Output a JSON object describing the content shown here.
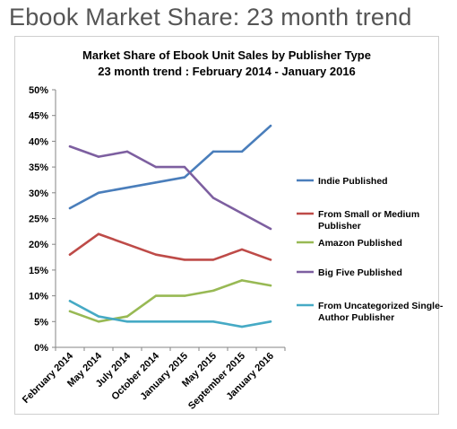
{
  "page": {
    "heading": "Ebook Market Share: 23 month trend"
  },
  "chart_data": {
    "type": "line",
    "title": "Market Share of Ebook Unit Sales by Publisher Type",
    "subtitle": "23 month trend : February 2014 - January 2016",
    "xlabel": "",
    "ylabel": "",
    "categories": [
      "February 2014",
      "May 2014",
      "July 2014",
      "October 2014",
      "January 2015",
      "May 2015",
      "September 2015",
      "January 2016"
    ],
    "y_ticks": [
      "0%",
      "5%",
      "10%",
      "15%",
      "20%",
      "25%",
      "30%",
      "35%",
      "40%",
      "45%",
      "50%"
    ],
    "ylim": [
      0,
      50
    ],
    "grid": false,
    "legend_position": "right",
    "series": [
      {
        "name": "Indie Published",
        "color": "#4a7ebb",
        "values": [
          27,
          30,
          31,
          32,
          33,
          38,
          38,
          43
        ]
      },
      {
        "name": "From Small or Medium Publisher",
        "color": "#be4b48",
        "values": [
          18,
          22,
          20,
          18,
          17,
          17,
          19,
          17
        ]
      },
      {
        "name": "Amazon Published",
        "color": "#98b954",
        "values": [
          7,
          5,
          6,
          10,
          10,
          11,
          13,
          12
        ]
      },
      {
        "name": "Big Five Published",
        "color": "#7d5fa0",
        "values": [
          39,
          37,
          38,
          35,
          35,
          29,
          26,
          23
        ]
      },
      {
        "name": "From Uncategorized Single-Author Publisher",
        "color": "#46aac5",
        "values": [
          9,
          6,
          5,
          5,
          5,
          5,
          4,
          5
        ]
      }
    ]
  }
}
